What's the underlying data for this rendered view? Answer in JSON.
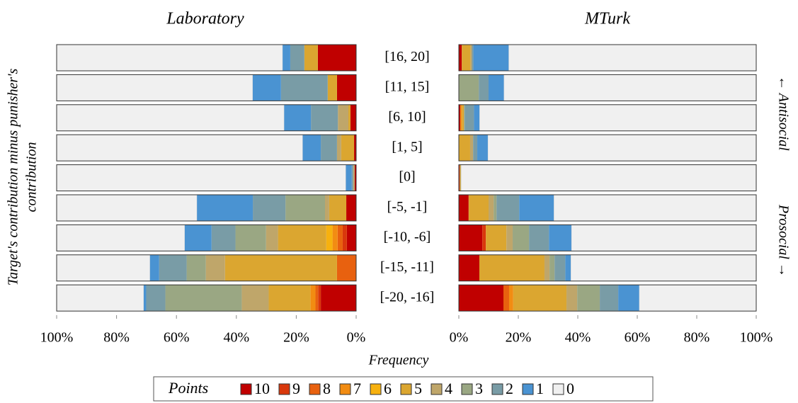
{
  "chart_data": [
    {
      "type": "bar",
      "orientation": "horizontal",
      "stacked": true,
      "title": "Laboratory",
      "xlabel": "Frequency",
      "ylabel": [
        "Target's contribution minus punisher's",
        "contribution"
      ],
      "legend_title": "Points",
      "categories": [
        "[16, 20]",
        "[11, 15]",
        "[6, 10]",
        "[1, 5]",
        "[0]",
        "[-5, -1]",
        "[-10, -6]",
        "[-15, -11]",
        "[-20, -16]"
      ],
      "xlim": [
        100,
        0
      ],
      "xticks": [
        {
          "value": 100,
          "label": "100%"
        },
        {
          "value": 80,
          "label": "80%"
        },
        {
          "value": 60,
          "label": "60%"
        },
        {
          "value": 40,
          "label": "40%"
        },
        {
          "value": 20,
          "label": "20%"
        },
        {
          "value": 0,
          "label": "0%"
        }
      ],
      "series": [
        {
          "name": "10",
          "color": "#c00000",
          "values": [
            12.8,
            6.4,
            1.9,
            0.7,
            0.5,
            3.3,
            3.1,
            0,
            11.8
          ]
        },
        {
          "name": "9",
          "color": "#d9380c",
          "values": [
            0,
            0,
            0,
            0,
            0,
            0,
            1.4,
            0,
            0.9
          ]
        },
        {
          "name": "8",
          "color": "#e8610f",
          "values": [
            0,
            0,
            0,
            0,
            0,
            0,
            1.7,
            6.4,
            0.9
          ]
        },
        {
          "name": "7",
          "color": "#f28c12",
          "values": [
            0,
            0,
            0,
            0,
            0,
            0,
            1.7,
            0,
            1.7
          ]
        },
        {
          "name": "6",
          "color": "#f7b10f",
          "values": [
            0,
            0,
            0,
            0,
            0,
            0,
            2.1,
            0,
            0
          ]
        },
        {
          "name": "5",
          "color": "#dba630",
          "values": [
            4.5,
            3.1,
            0.7,
            4.3,
            0,
            5.7,
            16.1,
            37.4,
            13.9
          ]
        },
        {
          "name": "4",
          "color": "#bfa66a",
          "values": [
            0,
            0,
            3.5,
            1.4,
            0.5,
            1.4,
            4.0,
            6.4,
            9.0
          ]
        },
        {
          "name": "3",
          "color": "#9aa783",
          "values": [
            0,
            0,
            0,
            0,
            0,
            13.2,
            10.2,
            6.4,
            25.5
          ]
        },
        {
          "name": "2",
          "color": "#799ca6",
          "values": [
            4.7,
            15.6,
            9.0,
            5.4,
            0.5,
            10.9,
            8.0,
            9.2,
            6.4
          ]
        },
        {
          "name": "1",
          "color": "#4a93d2",
          "values": [
            2.6,
            9.5,
            9.0,
            6.1,
            2.0,
            18.7,
            9.0,
            3.1,
            0.9
          ]
        },
        {
          "name": "0",
          "color": "#f0f0f0",
          "values": [
            75.4,
            65.4,
            75.9,
            82.1,
            96.5,
            46.8,
            42.7,
            31.1,
            29.0
          ]
        }
      ]
    },
    {
      "type": "bar",
      "orientation": "horizontal",
      "stacked": true,
      "title": "MTurk",
      "annotations": [
        "← Antisocial",
        "Prosocial →"
      ],
      "xlim": [
        0,
        100
      ],
      "xticks": [
        {
          "value": 0,
          "label": "0%"
        },
        {
          "value": 20,
          "label": "20%"
        },
        {
          "value": 40,
          "label": "40%"
        },
        {
          "value": 60,
          "label": "60%"
        },
        {
          "value": 80,
          "label": "80%"
        },
        {
          "value": 100,
          "label": "100%"
        }
      ],
      "series": [
        {
          "values": [
            1.0,
            0,
            0.5,
            0,
            0.3,
            3.3,
            7.9,
            6.9,
            15.0
          ]
        },
        {
          "values": [
            0,
            0,
            0,
            0,
            0,
            0,
            1.2,
            0,
            0
          ]
        },
        {
          "values": [
            0,
            0,
            0,
            0,
            0,
            0,
            0,
            0,
            1.9
          ]
        },
        {
          "values": [
            0,
            0,
            0.5,
            0,
            0,
            0,
            0,
            0,
            1.4
          ]
        },
        {
          "values": [
            0,
            0,
            0,
            0,
            0,
            0,
            0,
            0,
            0
          ]
        },
        {
          "values": [
            2.9,
            0,
            0.7,
            3.8,
            0.3,
            6.7,
            6.9,
            21.9,
            17.9
          ]
        },
        {
          "values": [
            0.5,
            0,
            0,
            1.0,
            0,
            1.7,
            2.1,
            1.7,
            3.6
          ]
        },
        {
          "values": [
            0,
            6.7,
            0.3,
            0,
            0.2,
            1.0,
            5.5,
            1.7,
            7.6
          ]
        },
        {
          "values": [
            0.5,
            3.3,
            3.1,
            1.4,
            0,
            7.6,
            6.7,
            3.6,
            6.2
          ]
        },
        {
          "values": [
            11.9,
            5.2,
            1.9,
            3.6,
            0,
            11.7,
            7.6,
            1.9,
            7.1
          ]
        },
        {
          "values": [
            83.2,
            84.8,
            93.0,
            90.2,
            99.2,
            68.0,
            62.1,
            62.3,
            39.3
          ]
        }
      ]
    }
  ]
}
